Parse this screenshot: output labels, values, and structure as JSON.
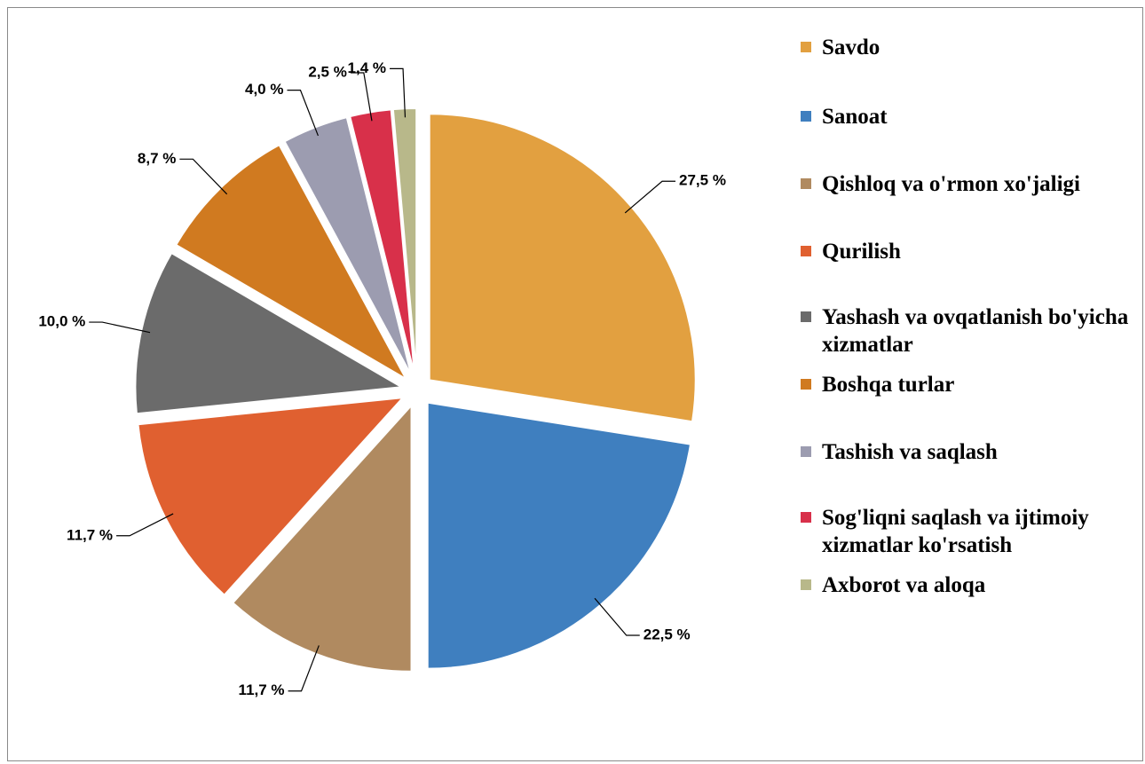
{
  "chart_data": {
    "type": "pie",
    "categories": [
      "Savdo",
      "Sanoat",
      "Qishloq va o'rmon xo'jaligi",
      "Qurilish",
      "Yashash va ovqatlanish bo'yicha xizmatlar",
      "Boshqa turlar",
      "Tashish va saqlash",
      "Sog'liqni saqlash va ijtimoiy xizmatlar ko'rsatish",
      "Axborot va aloqa"
    ],
    "values": [
      27.5,
      22.5,
      11.7,
      11.7,
      10.0,
      8.7,
      4.0,
      2.5,
      1.4
    ],
    "value_labels": [
      "27,5 %",
      "22,5 %",
      "11,7 %",
      "11,7 %",
      "10,0 %",
      "8,7 %",
      "4,0 %",
      "2,5 %",
      "1,4 %"
    ],
    "colors": [
      "#e2a040",
      "#3f7fbf",
      "#b08a60",
      "#e06030",
      "#6b6b6b",
      "#d07a20",
      "#9c9cb0",
      "#d8304a",
      "#b8b88a"
    ],
    "legend": "right"
  }
}
